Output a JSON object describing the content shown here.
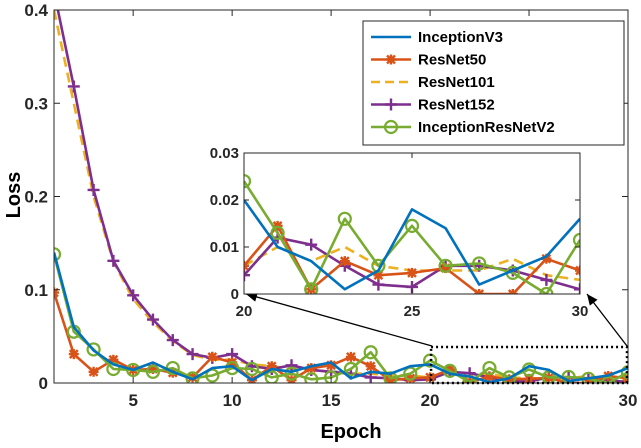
{
  "chart_data": {
    "type": "line",
    "xlabel": "Epoch",
    "ylabel": "Loss",
    "xlim": [
      1,
      30
    ],
    "ylim": [
      0,
      0.4
    ],
    "xticks": [
      5,
      10,
      15,
      20,
      25,
      30
    ],
    "xtick_labels": [
      "5",
      "10",
      "15",
      "20",
      "25",
      "30"
    ],
    "yticks": [
      0,
      0.1,
      0.2,
      0.3,
      0.4
    ],
    "ytick_labels": [
      "0",
      "0.1",
      "0.2",
      "0.3",
      "0.4"
    ],
    "legend_position": "top-right",
    "grid": false,
    "x": [
      1,
      2,
      3,
      4,
      5,
      6,
      7,
      8,
      9,
      10,
      11,
      12,
      13,
      14,
      15,
      16,
      17,
      18,
      19,
      20,
      21,
      22,
      23,
      24,
      25,
      26,
      27,
      28,
      29,
      30
    ],
    "series": [
      {
        "name": "InceptionV3",
        "color": "#0072BD",
        "marker": "none",
        "dash": "solid",
        "values": [
          0.14,
          0.06,
          0.035,
          0.02,
          0.014,
          0.022,
          0.012,
          0.004,
          0.016,
          0.018,
          0.003,
          0.015,
          0.012,
          0.018,
          0.022,
          0.005,
          0.012,
          0.01,
          0.018,
          0.02,
          0.01,
          0.007,
          0.001,
          0.005,
          0.018,
          0.014,
          0.002,
          0.005,
          0.008,
          0.016
        ]
      },
      {
        "name": "ResNet50",
        "color": "#D95319",
        "marker": "asterisk",
        "dash": "solid",
        "values": [
          0.097,
          0.031,
          0.012,
          0.025,
          0.014,
          0.015,
          0.011,
          0.006,
          0.028,
          0.022,
          0.003,
          0.018,
          0.003,
          0.016,
          0.019,
          0.028,
          0.018,
          0.003,
          0.005,
          0.006,
          0.0145,
          0.001,
          0.007,
          0.004,
          0.0045,
          0.0055,
          0.0,
          0.0,
          0.0075,
          0.005
        ]
      },
      {
        "name": "ResNet101",
        "color": "#EDB120",
        "marker": "none",
        "dash": "dashed",
        "values": [
          0.4,
          0.3,
          0.2,
          0.13,
          0.09,
          0.065,
          0.045,
          0.03,
          0.025,
          0.025,
          0.02,
          0.018,
          0.015,
          0.014,
          0.012,
          0.01,
          0.01,
          0.008,
          0.008,
          0.006,
          0.01,
          0.007,
          0.01,
          0.006,
          0.005,
          0.005,
          0.005,
          0.0075,
          0.004,
          0.003
        ]
      },
      {
        "name": "ResNet152",
        "color": "#7E2F8E",
        "marker": "plus",
        "dash": "solid",
        "values": [
          0.42,
          0.318,
          0.207,
          0.131,
          0.094,
          0.068,
          0.046,
          0.031,
          0.027,
          0.031,
          0.018,
          0.015,
          0.019,
          0.014,
          0.012,
          0.01,
          0.006,
          0.005,
          0.003,
          0.004,
          0.012,
          0.0105,
          0.006,
          0.002,
          0.0015,
          0.006,
          0.006,
          0.005,
          0.003,
          0.001
        ]
      },
      {
        "name": "InceptionResNetV2",
        "color": "#77AC30",
        "marker": "circle",
        "dash": "solid",
        "values": [
          0.138,
          0.055,
          0.036,
          0.015,
          0.014,
          0.012,
          0.016,
          0.005,
          0.008,
          0.016,
          0.015,
          0.006,
          0.01,
          0.004,
          0.006,
          0.015,
          0.033,
          0.005,
          0.01,
          0.024,
          0.013,
          0.001,
          0.016,
          0.006,
          0.0145,
          0.006,
          0.0065,
          0.0045,
          0.0,
          0.0115
        ]
      }
    ],
    "inset": {
      "xlim": [
        20,
        30
      ],
      "ylim": [
        0,
        0.03
      ],
      "xticks": [
        20,
        25,
        30
      ],
      "xtick_labels": [
        "20",
        "25",
        "30"
      ],
      "yticks": [
        0,
        0.01,
        0.02,
        0.03
      ],
      "ytick_labels": [
        "0",
        "0.01",
        "0.02",
        "0.03"
      ]
    }
  }
}
